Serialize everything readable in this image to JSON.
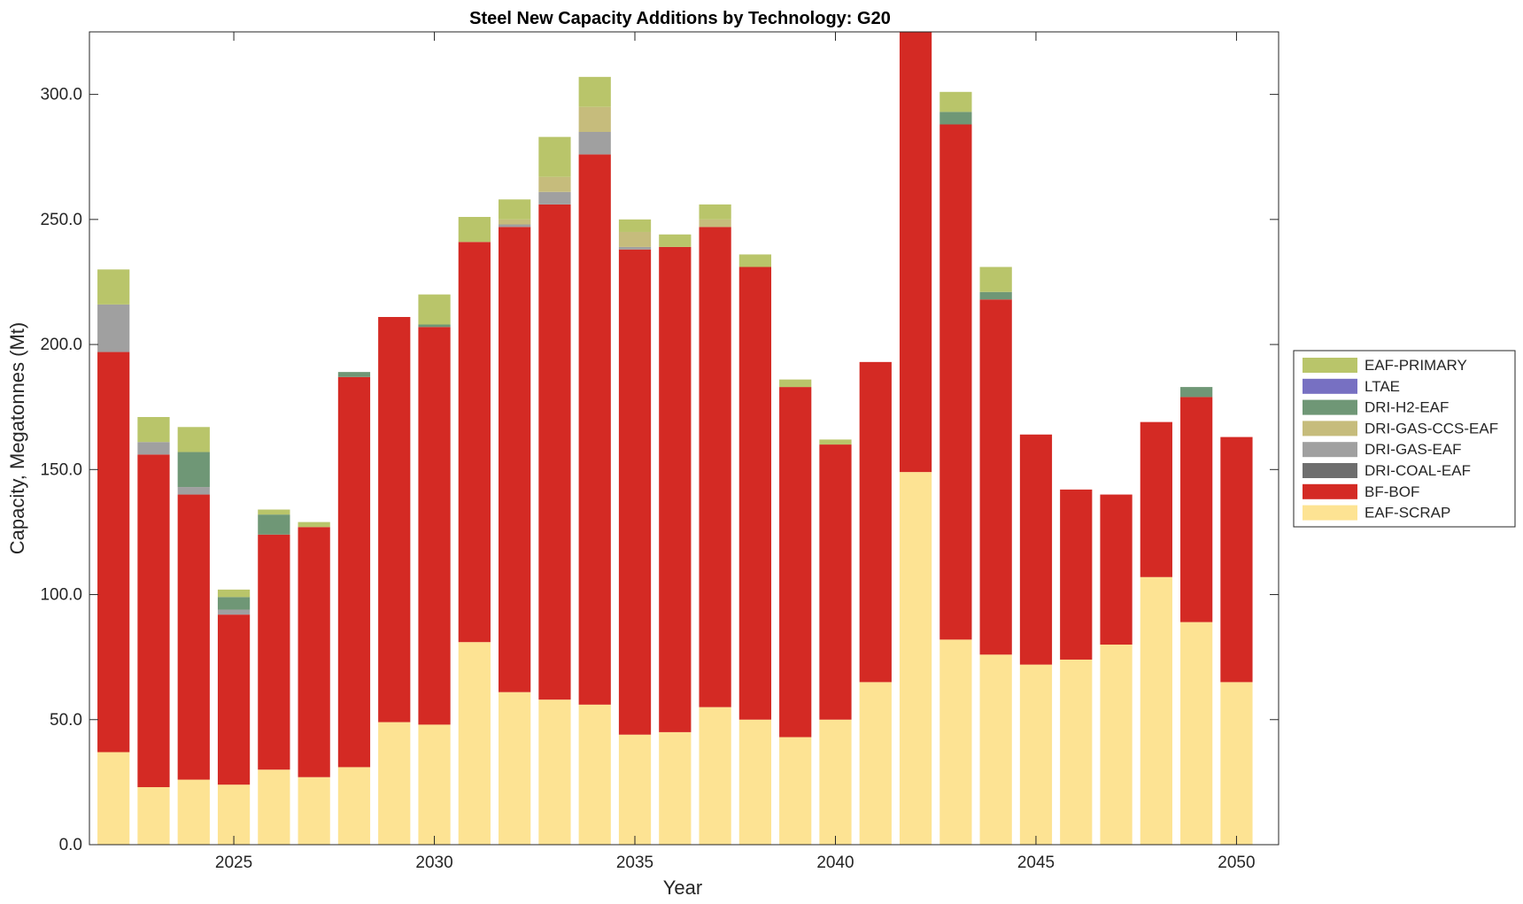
{
  "chart_data": {
    "type": "bar",
    "stacked": true,
    "title": "Steel New Capacity Additions by Technology: G20",
    "xlabel": "Year",
    "ylabel": "Capacity, Megatonnes (Mt)",
    "ylim": [
      0,
      325
    ],
    "xlim": [
      2021.4,
      2051.05
    ],
    "yticks": [
      0,
      50,
      100,
      150,
      200,
      250,
      300
    ],
    "ytick_labels": [
      "0.0",
      "50.0",
      "100.0",
      "150.0",
      "200.0",
      "250.0",
      "300.0"
    ],
    "xticks": [
      2025,
      2030,
      2035,
      2040,
      2045,
      2050
    ],
    "xtick_labels": [
      "2025",
      "2030",
      "2035",
      "2040",
      "2045",
      "2050"
    ],
    "legend_position": "right",
    "x": [
      2022,
      2023,
      2024,
      2025,
      2026,
      2027,
      2028,
      2029,
      2030,
      2031,
      2032,
      2033,
      2034,
      2035,
      2036,
      2037,
      2038,
      2039,
      2040,
      2041,
      2042,
      2043,
      2044,
      2045,
      2046,
      2047,
      2048,
      2049,
      2050
    ],
    "series": [
      {
        "name": "EAF-SCRAP",
        "color": "#FDE393",
        "values": [
          37,
          23,
          26,
          24,
          30,
          27,
          31,
          49,
          48,
          81,
          61,
          58,
          56,
          44,
          45,
          55,
          50,
          43,
          50,
          65,
          149,
          82,
          76,
          72,
          74,
          80,
          107,
          89,
          65
        ]
      },
      {
        "name": "BF-BOF",
        "color": "#D42A24",
        "values": [
          160,
          133,
          114,
          68,
          94,
          100,
          156,
          162,
          159,
          160,
          186,
          198,
          220,
          194,
          194,
          192,
          181,
          140,
          110,
          128,
          176,
          206,
          142,
          92,
          68,
          60,
          62,
          90,
          98
        ]
      },
      {
        "name": "DRI-COAL-EAF",
        "color": "#6E6E6E",
        "values": [
          0,
          0,
          0,
          0,
          0,
          0,
          0,
          0,
          0,
          0,
          0,
          0,
          0,
          0,
          0,
          0,
          0,
          0,
          0,
          0,
          0,
          0,
          0,
          0,
          0,
          0,
          0,
          0,
          0
        ]
      },
      {
        "name": "DRI-GAS-EAF",
        "color": "#A0A0A0",
        "values": [
          19,
          5,
          3,
          2,
          0,
          0,
          0,
          0,
          0,
          0,
          1,
          5,
          9,
          1,
          0,
          0,
          0,
          0,
          0,
          0,
          0,
          0,
          0,
          0,
          0,
          0,
          0,
          0,
          0
        ]
      },
      {
        "name": "DRI-GAS-CCS-EAF",
        "color": "#C6BC7C",
        "values": [
          0,
          0,
          0,
          0,
          0,
          0,
          0,
          0,
          0,
          0,
          2,
          6,
          10,
          6,
          0,
          3,
          0,
          0,
          0,
          0,
          0,
          0,
          0,
          0,
          0,
          0,
          0,
          0,
          0
        ]
      },
      {
        "name": "DRI-H2-EAF",
        "color": "#6F9776",
        "values": [
          0,
          0,
          14,
          5,
          8,
          0,
          2,
          0,
          1,
          0,
          0,
          0,
          0,
          0,
          0,
          0,
          0,
          0,
          0,
          0,
          0,
          5,
          3,
          0,
          0,
          0,
          0,
          4,
          0
        ]
      },
      {
        "name": "LTAE",
        "color": "#7770C2",
        "values": [
          0,
          0,
          0,
          0,
          0,
          0,
          0,
          0,
          0,
          0,
          0,
          0,
          0,
          0,
          0,
          0,
          0,
          0,
          0,
          0,
          0,
          0,
          0,
          0,
          0,
          0,
          0,
          0,
          0
        ]
      },
      {
        "name": "EAF-PRIMARY",
        "color": "#B9C56A",
        "values": [
          14,
          10,
          10,
          3,
          2,
          2,
          0,
          0,
          12,
          10,
          8,
          16,
          12,
          5,
          5,
          6,
          5,
          3,
          2,
          0,
          0,
          8,
          10,
          0,
          0,
          0,
          0,
          0,
          0
        ]
      }
    ]
  }
}
